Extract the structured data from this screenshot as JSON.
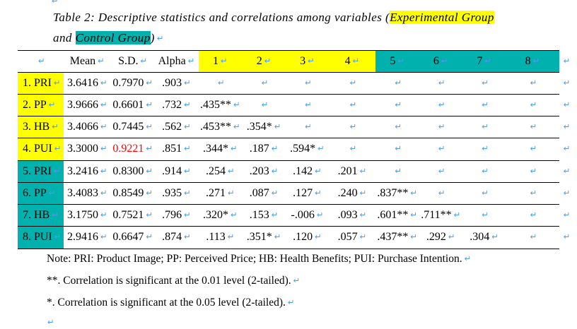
{
  "colors": {
    "yellow": "#ffff00",
    "teal": "#00b1ad",
    "mark_blue": "#4d9df2",
    "red": "#ff0000"
  },
  "marks": {
    "return_glyph": "↵"
  },
  "title": {
    "line1_text": "Table 2: Descriptive statistics and correlations among variables (",
    "line1_highlight": "Experimental Group",
    "line2_text": "and ",
    "line2_highlight": "Control Group",
    "line2_suffix": ")"
  },
  "table": {
    "headers": [
      {
        "label": "",
        "highlight": "none"
      },
      {
        "label": "Mean",
        "highlight": "none"
      },
      {
        "label": "S.D.",
        "highlight": "none"
      },
      {
        "label": "Alpha",
        "highlight": "none"
      },
      {
        "label": "1",
        "highlight": "yellow"
      },
      {
        "label": "2",
        "highlight": "yellow"
      },
      {
        "label": "3",
        "highlight": "yellow"
      },
      {
        "label": "4",
        "highlight": "yellow"
      },
      {
        "label": "5",
        "highlight": "teal"
      },
      {
        "label": "6",
        "highlight": "teal"
      },
      {
        "label": "7",
        "highlight": "teal"
      },
      {
        "label": "8",
        "highlight": "teal"
      }
    ],
    "rows": [
      {
        "label": "1. PRI",
        "highlight": "yellow",
        "values": [
          "3.6416",
          "0.7970",
          ".903",
          "",
          "",
          "",
          "",
          "",
          "",
          "",
          ""
        ]
      },
      {
        "label": "2. PP",
        "highlight": "yellow",
        "values": [
          "3.9666",
          "0.6601",
          ".732",
          ".435**",
          "",
          "",
          "",
          "",
          "",
          "",
          ""
        ]
      },
      {
        "label": "3. HB",
        "highlight": "yellow",
        "values": [
          "3.4066",
          "0.7445",
          ".562",
          ".453**",
          ".354*",
          "",
          "",
          "",
          "",
          "",
          ""
        ]
      },
      {
        "label": "4. PUI",
        "highlight": "yellow",
        "values": [
          "3.3000",
          {
            "text": "0.9221",
            "color": "#ff0000"
          },
          ".851",
          ".344*",
          ".187",
          ".594*",
          "",
          "",
          "",
          "",
          ""
        ]
      },
      {
        "label": "5. PRI",
        "highlight": "teal",
        "values": [
          "3.2416",
          "0.8300",
          ".914",
          ".254",
          ".203",
          ".142",
          ".201",
          "",
          "",
          "",
          ""
        ]
      },
      {
        "label": "6. PP",
        "highlight": "teal",
        "values": [
          "3.4083",
          "0.8549",
          ".935",
          ".271",
          ".087",
          ".127",
          ".240",
          ".837**",
          "",
          "",
          ""
        ]
      },
      {
        "label": "7. HB",
        "highlight": "teal",
        "values": [
          "3.1750",
          "0.7521",
          ".796",
          ".320*",
          ".153",
          "-.006",
          ".093",
          ".601**",
          ".711**",
          "",
          ""
        ]
      },
      {
        "label": "8. PUI",
        "highlight": "teal",
        "values": [
          "2.9416",
          "0.6647",
          ".874",
          ".113",
          ".351*",
          ".120",
          ".057",
          ".437**",
          ".292",
          ".304",
          ""
        ]
      }
    ]
  },
  "notes": [
    "Note: PRI: Product Image; PP: Perceived Price; HB: Health Benefits; PUI: Purchase Intention.",
    "**. Correlation is significant at the 0.01 level (2-tailed).",
    "*. Correlation is significant at the 0.05 level (2-tailed)."
  ]
}
